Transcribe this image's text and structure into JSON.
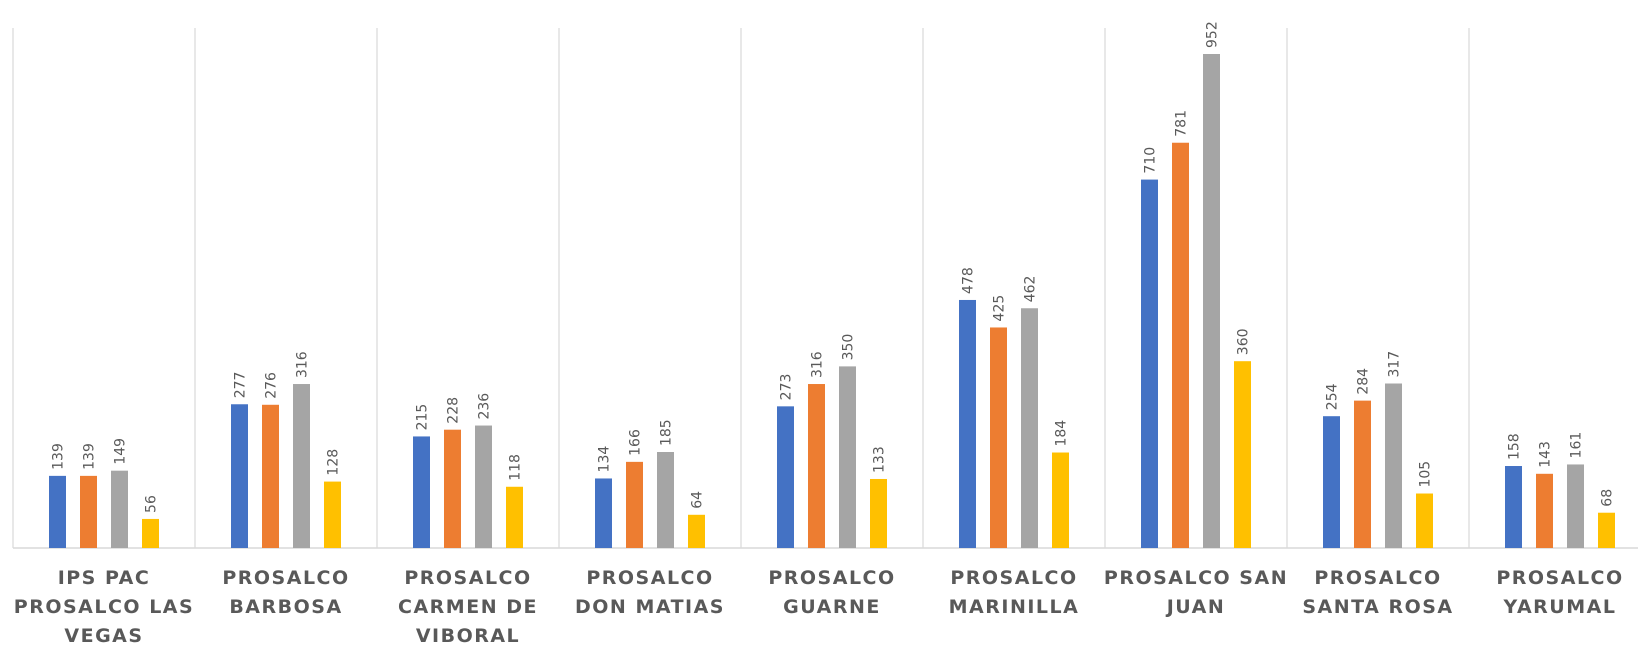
{
  "chart_data": {
    "type": "bar",
    "title": "",
    "xlabel": "",
    "ylabel": "",
    "ylim": [
      0,
      1000
    ],
    "grid": false,
    "legend": "none",
    "categories": [
      [
        "IPS PAC",
        "PROSALCO LAS",
        "VEGAS"
      ],
      [
        "PROSALCO",
        "BARBOSA"
      ],
      [
        "PROSALCO",
        "CARMEN DE",
        "VIBORAL"
      ],
      [
        "PROSALCO",
        "DON MATIAS"
      ],
      [
        "PROSALCO",
        "GUARNE"
      ],
      [
        "PROSALCO",
        "MARINILLA"
      ],
      [
        "PROSALCO SAN",
        "JUAN"
      ],
      [
        "PROSALCO",
        "SANTA ROSA"
      ],
      [
        "PROSALCO",
        "YARUMAL"
      ]
    ],
    "series": [
      {
        "color": "#4472c4",
        "values": [
          139,
          277,
          215,
          134,
          273,
          478,
          710,
          254,
          158
        ]
      },
      {
        "color": "#ed7d31",
        "values": [
          139,
          276,
          228,
          166,
          316,
          425,
          781,
          284,
          143
        ]
      },
      {
        "color": "#a5a5a5",
        "values": [
          149,
          316,
          236,
          185,
          350,
          462,
          952,
          317,
          161
        ]
      },
      {
        "color": "#ffc000",
        "values": [
          56,
          128,
          118,
          64,
          133,
          184,
          360,
          105,
          68
        ]
      }
    ]
  }
}
